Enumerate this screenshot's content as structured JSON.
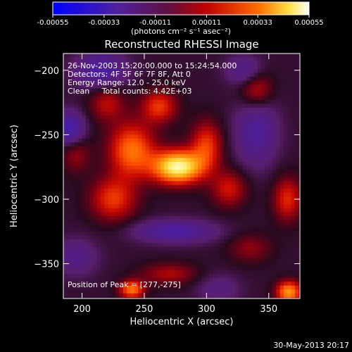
{
  "colorbar": {
    "ticks": [
      "-0.00055",
      "-0.00033",
      "-0.00011",
      "0.00011",
      "0.00033",
      "0.00055"
    ],
    "tick_values": [
      -0.00055,
      -0.00033,
      -0.00011,
      0.00011,
      0.00033,
      0.00055
    ],
    "unit_label": "(photons cm⁻² s⁻¹ asec⁻²)"
  },
  "chart_data": {
    "type": "heatmap",
    "title": "Reconstructed RHESSI Image",
    "xlabel": "Heliocentric X (arcsec)",
    "ylabel": "Heliocentric Y (arcsec)",
    "xlim": [
      185,
      375
    ],
    "ylim": [
      -377,
      -187
    ],
    "xticks": [
      200,
      250,
      300,
      350
    ],
    "yticks": [
      -200,
      -250,
      -300,
      -350
    ],
    "colormap": "blue-purple-red-yellow-white",
    "value_range": [
      -0.00055,
      0.00055
    ],
    "annotations": [
      "26-Nov-2003 15:20:00.000 to 15:24:54.000",
      "Detectors: 4F 5F 6F 7F 8F, Att 0",
      "Energy Range: 12.0 - 25.0 keV",
      "Clean     Total counts: 4.42E+03"
    ],
    "peak_label": "Position of Peak = [277,-275]",
    "peak": [
      277,
      -275
    ],
    "sources": [
      {
        "x": 277,
        "y": -275,
        "value": 0.00055,
        "sx": 14,
        "sy": 9
      },
      {
        "x": 240,
        "y": -262,
        "value": 0.00032,
        "sx": 13,
        "sy": 15
      },
      {
        "x": 262,
        "y": -228,
        "value": 0.00024,
        "sx": 10,
        "sy": 9
      },
      {
        "x": 300,
        "y": -258,
        "value": 0.00024,
        "sx": 9,
        "sy": 13
      },
      {
        "x": 225,
        "y": -300,
        "value": 0.00024,
        "sx": 13,
        "sy": 12
      },
      {
        "x": 318,
        "y": -292,
        "value": 0.00019,
        "sx": 10,
        "sy": 10
      },
      {
        "x": 220,
        "y": -225,
        "value": 0.00017,
        "sx": 10,
        "sy": 10
      },
      {
        "x": 340,
        "y": -215,
        "value": 0.00019,
        "sx": 9,
        "sy": 10
      },
      {
        "x": 365,
        "y": -300,
        "value": 0.00022,
        "sx": 8,
        "sy": 12
      },
      {
        "x": 195,
        "y": -265,
        "value": 0.00013,
        "sx": 8,
        "sy": 10
      },
      {
        "x": 240,
        "y": -370,
        "value": 0.00033,
        "sx": 7,
        "sy": 5
      },
      {
        "x": 366,
        "y": -372,
        "value": 0.00038,
        "sx": 7,
        "sy": 6
      },
      {
        "x": 270,
        "y": -358,
        "value": 0.00015,
        "sx": 16,
        "sy": 6
      },
      {
        "x": 335,
        "y": -338,
        "value": 0.00012,
        "sx": 12,
        "sy": 8
      },
      {
        "x": 190,
        "y": -245,
        "value": -0.0003,
        "sx": 8,
        "sy": 9
      },
      {
        "x": 215,
        "y": -200,
        "value": -0.00026,
        "sx": 14,
        "sy": 10
      },
      {
        "x": 275,
        "y": -325,
        "value": -0.00026,
        "sx": 22,
        "sy": 6
      },
      {
        "x": 340,
        "y": -248,
        "value": -0.00022,
        "sx": 12,
        "sy": 18
      },
      {
        "x": 330,
        "y": -200,
        "value": -0.00018,
        "sx": 10,
        "sy": 8
      },
      {
        "x": 195,
        "y": -345,
        "value": -0.00016,
        "sx": 12,
        "sy": 10
      },
      {
        "x": 310,
        "y": -370,
        "value": -0.00012,
        "sx": 12,
        "sy": 8
      }
    ]
  },
  "footer": {
    "timestamp": "30-May-2013 20:17"
  }
}
